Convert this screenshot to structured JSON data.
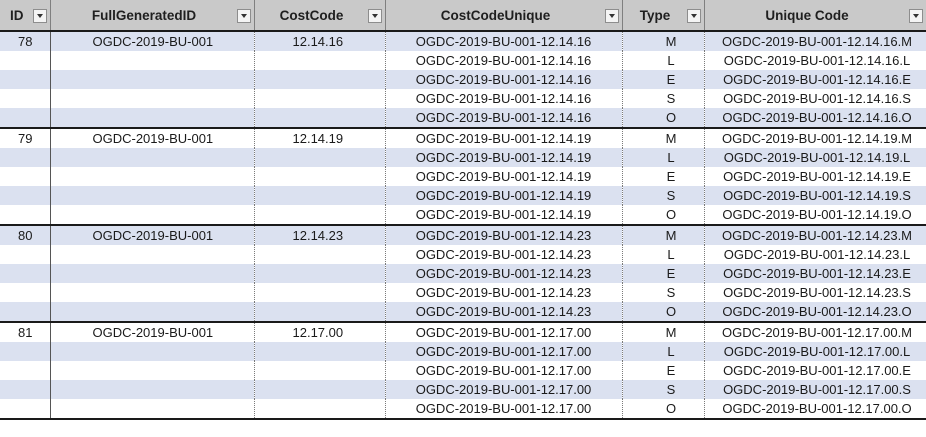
{
  "columns": [
    "ID",
    "FullGeneratedID",
    "CostCode",
    "CostCodeUnique",
    "Type",
    "Unique Code"
  ],
  "icons": {
    "filter": "filter-dropdown-icon"
  },
  "colors": {
    "header_bg": "#c9c9c9",
    "band_bg": "#dbe1f0",
    "row_bg": "#ffffff",
    "group_border": "#1a1a1a"
  },
  "rows": [
    {
      "id": "78",
      "full": "OGDC-2019-BU-001",
      "cc": "12.14.16",
      "ccu": "OGDC-2019-BU-001-12.14.16",
      "type": "M",
      "uc": "OGDC-2019-BU-001-12.14.16.M"
    },
    {
      "id": "",
      "full": "",
      "cc": "",
      "ccu": "OGDC-2019-BU-001-12.14.16",
      "type": "L",
      "uc": "OGDC-2019-BU-001-12.14.16.L"
    },
    {
      "id": "",
      "full": "",
      "cc": "",
      "ccu": "OGDC-2019-BU-001-12.14.16",
      "type": "E",
      "uc": "OGDC-2019-BU-001-12.14.16.E"
    },
    {
      "id": "",
      "full": "",
      "cc": "",
      "ccu": "OGDC-2019-BU-001-12.14.16",
      "type": "S",
      "uc": "OGDC-2019-BU-001-12.14.16.S"
    },
    {
      "id": "",
      "full": "",
      "cc": "",
      "ccu": "OGDC-2019-BU-001-12.14.16",
      "type": "O",
      "uc": "OGDC-2019-BU-001-12.14.16.O"
    },
    {
      "id": "79",
      "full": "OGDC-2019-BU-001",
      "cc": "12.14.19",
      "ccu": "OGDC-2019-BU-001-12.14.19",
      "type": "M",
      "uc": "OGDC-2019-BU-001-12.14.19.M"
    },
    {
      "id": "",
      "full": "",
      "cc": "",
      "ccu": "OGDC-2019-BU-001-12.14.19",
      "type": "L",
      "uc": "OGDC-2019-BU-001-12.14.19.L"
    },
    {
      "id": "",
      "full": "",
      "cc": "",
      "ccu": "OGDC-2019-BU-001-12.14.19",
      "type": "E",
      "uc": "OGDC-2019-BU-001-12.14.19.E"
    },
    {
      "id": "",
      "full": "",
      "cc": "",
      "ccu": "OGDC-2019-BU-001-12.14.19",
      "type": "S",
      "uc": "OGDC-2019-BU-001-12.14.19.S"
    },
    {
      "id": "",
      "full": "",
      "cc": "",
      "ccu": "OGDC-2019-BU-001-12.14.19",
      "type": "O",
      "uc": "OGDC-2019-BU-001-12.14.19.O"
    },
    {
      "id": "80",
      "full": "OGDC-2019-BU-001",
      "cc": "12.14.23",
      "ccu": "OGDC-2019-BU-001-12.14.23",
      "type": "M",
      "uc": "OGDC-2019-BU-001-12.14.23.M"
    },
    {
      "id": "",
      "full": "",
      "cc": "",
      "ccu": "OGDC-2019-BU-001-12.14.23",
      "type": "L",
      "uc": "OGDC-2019-BU-001-12.14.23.L"
    },
    {
      "id": "",
      "full": "",
      "cc": "",
      "ccu": "OGDC-2019-BU-001-12.14.23",
      "type": "E",
      "uc": "OGDC-2019-BU-001-12.14.23.E"
    },
    {
      "id": "",
      "full": "",
      "cc": "",
      "ccu": "OGDC-2019-BU-001-12.14.23",
      "type": "S",
      "uc": "OGDC-2019-BU-001-12.14.23.S"
    },
    {
      "id": "",
      "full": "",
      "cc": "",
      "ccu": "OGDC-2019-BU-001-12.14.23",
      "type": "O",
      "uc": "OGDC-2019-BU-001-12.14.23.O"
    },
    {
      "id": "81",
      "full": "OGDC-2019-BU-001",
      "cc": "12.17.00",
      "ccu": "OGDC-2019-BU-001-12.17.00",
      "type": "M",
      "uc": "OGDC-2019-BU-001-12.17.00.M"
    },
    {
      "id": "",
      "full": "",
      "cc": "",
      "ccu": "OGDC-2019-BU-001-12.17.00",
      "type": "L",
      "uc": "OGDC-2019-BU-001-12.17.00.L"
    },
    {
      "id": "",
      "full": "",
      "cc": "",
      "ccu": "OGDC-2019-BU-001-12.17.00",
      "type": "E",
      "uc": "OGDC-2019-BU-001-12.17.00.E"
    },
    {
      "id": "",
      "full": "",
      "cc": "",
      "ccu": "OGDC-2019-BU-001-12.17.00",
      "type": "S",
      "uc": "OGDC-2019-BU-001-12.17.00.S"
    },
    {
      "id": "",
      "full": "",
      "cc": "",
      "ccu": "OGDC-2019-BU-001-12.17.00",
      "type": "O",
      "uc": "OGDC-2019-BU-001-12.17.00.O"
    }
  ]
}
